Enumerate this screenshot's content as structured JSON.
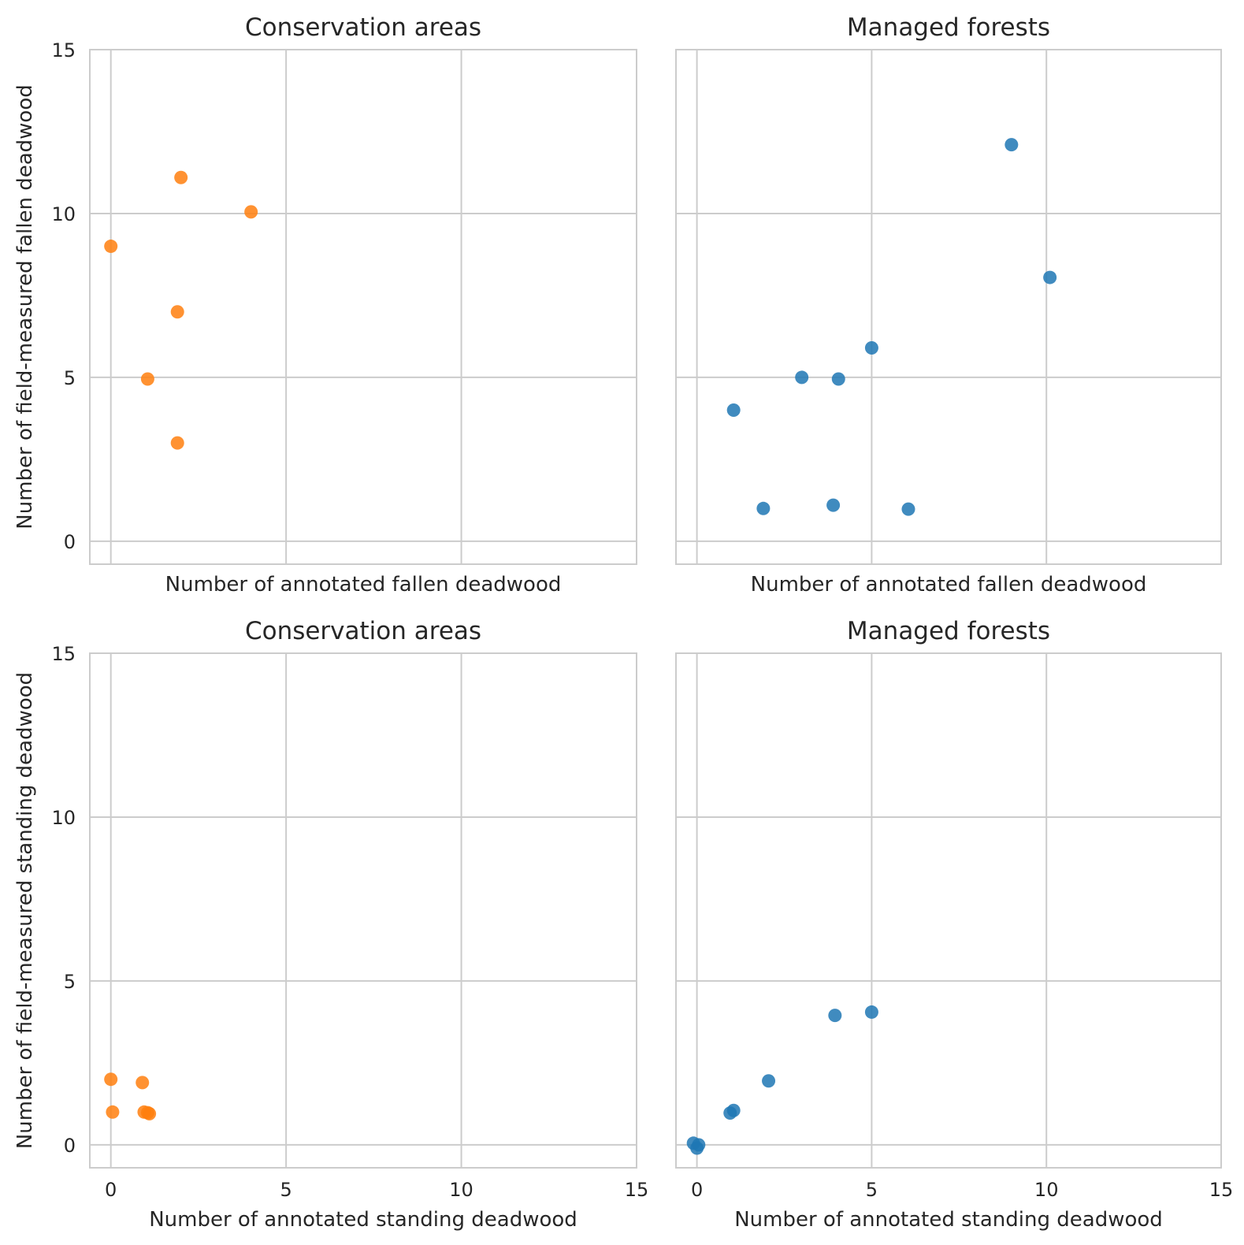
{
  "colors": {
    "conservation": "#ff7f0e",
    "managed": "#1f77b4",
    "grid": "#cccccc",
    "text": "#262626"
  },
  "chart_data": [
    {
      "type": "scatter",
      "title": "Conservation areas",
      "xlabel": "Number of annotated fallen deadwood",
      "ylabel": "Number of field-measured fallen deadwood",
      "xlim": [
        -0.6,
        15
      ],
      "ylim": [
        -0.7,
        15
      ],
      "xticks": [
        0,
        5,
        10,
        15
      ],
      "yticks": [
        0,
        5,
        10,
        15
      ],
      "xtick_labels": [],
      "ytick_labels": [
        "0",
        "5",
        "10",
        "15"
      ],
      "grid": true,
      "color": "#ff7f0e",
      "x": [
        0,
        2,
        4,
        1.9,
        1.05,
        1.9
      ],
      "y": [
        9,
        11.1,
        10.05,
        7,
        4.95,
        3
      ]
    },
    {
      "type": "scatter",
      "title": "Managed forests",
      "xlabel": "Number of annotated fallen deadwood",
      "ylabel": "",
      "xlim": [
        -0.6,
        15
      ],
      "ylim": [
        -0.7,
        15
      ],
      "xticks": [
        0,
        5,
        10,
        15
      ],
      "yticks": [
        0,
        5,
        10,
        15
      ],
      "xtick_labels": [],
      "ytick_labels": [],
      "grid": true,
      "color": "#1f77b4",
      "x": [
        9,
        10.1,
        5,
        3,
        4.05,
        1.05,
        1.9,
        3.9,
        6.05
      ],
      "y": [
        12.1,
        8.05,
        5.9,
        5,
        4.95,
        4,
        1,
        1.1,
        0.98
      ]
    },
    {
      "type": "scatter",
      "title": "Conservation areas",
      "xlabel": "Number of annotated standing deadwood",
      "ylabel": "Number of field-measured standing deadwood",
      "xlim": [
        -0.6,
        15
      ],
      "ylim": [
        -0.7,
        15
      ],
      "xticks": [
        0,
        5,
        10,
        15
      ],
      "yticks": [
        0,
        5,
        10,
        15
      ],
      "xtick_labels": [
        "0",
        "5",
        "10",
        "15"
      ],
      "ytick_labels": [
        "0",
        "5",
        "10",
        "15"
      ],
      "grid": true,
      "color": "#ff7f0e",
      "x": [
        0,
        0.9,
        0.05,
        0.95,
        1.1,
        1.05
      ],
      "y": [
        2,
        1.9,
        1,
        1,
        0.95,
        0.98
      ]
    },
    {
      "type": "scatter",
      "title": "Managed forests",
      "xlabel": "Number of annotated standing deadwood",
      "ylabel": "",
      "xlim": [
        -0.6,
        15
      ],
      "ylim": [
        -0.7,
        15
      ],
      "xticks": [
        0,
        5,
        10,
        15
      ],
      "yticks": [
        0,
        5,
        10,
        15
      ],
      "xtick_labels": [
        "0",
        "5",
        "10",
        "15"
      ],
      "ytick_labels": [],
      "grid": true,
      "color": "#1f77b4",
      "x": [
        5,
        3.95,
        2.05,
        1.05,
        0.95,
        -0.1,
        0.05,
        0
      ],
      "y": [
        4.05,
        3.95,
        1.95,
        1.05,
        0.97,
        0.05,
        0,
        -0.1
      ]
    }
  ]
}
